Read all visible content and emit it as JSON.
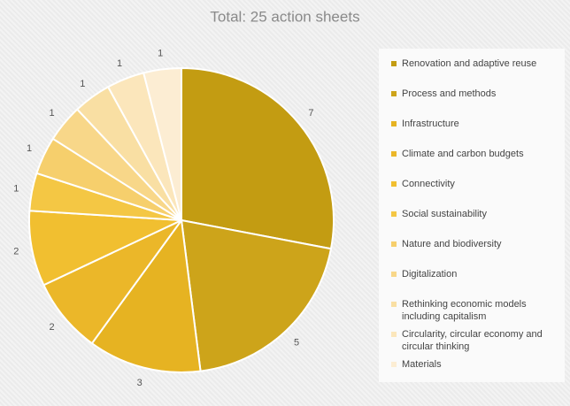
{
  "chart_data": {
    "type": "pie",
    "title": "Total: 25 action sheets",
    "categories": [
      "Renovation and adaptive reuse",
      "Process and methods",
      "Infrastructure",
      "Climate and carbon budgets",
      "Connectivity",
      "Social sustainability",
      "Nature and biodiversity",
      "Digitalization",
      "Rethinking economic models including capitalism",
      "Circularity, circular economy and circular thinking",
      "Materials"
    ],
    "values": [
      7,
      5,
      3,
      2,
      2,
      1,
      1,
      1,
      1,
      1,
      1
    ],
    "colors": [
      "#c39c12",
      "#cda41a",
      "#e6b322",
      "#ebb729",
      "#f1bf30",
      "#f4c744",
      "#f6cf6c",
      "#f8d789",
      "#f9dfa3",
      "#fbe6bb",
      "#fcedd3"
    ],
    "legend": "right"
  }
}
